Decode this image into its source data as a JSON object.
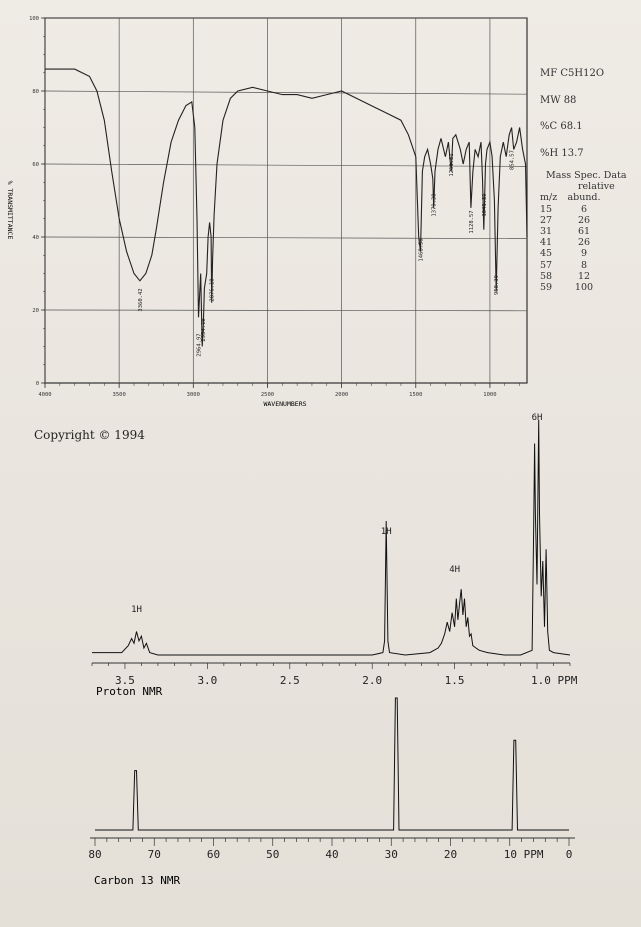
{
  "ir": {
    "ylabel": "% TRANSMITTANCE",
    "xlabel": "WAVENUMBERS",
    "y_ticks": [
      "100",
      "80",
      "60",
      "40",
      "20",
      "0"
    ],
    "x_ticks": [
      "4000",
      "3500",
      "3000",
      "2500",
      "2000",
      "1500",
      "1000"
    ],
    "peak_labels": [
      "3360.42",
      "2964.97",
      "2934.10",
      "2876.18",
      "1468.58",
      "1379.38",
      "1261.61",
      "1128.57",
      "1041.89",
      "958.39",
      "854.57"
    ]
  },
  "compound": {
    "mf": "MF C5H12O",
    "mw": "MW 88",
    "pct_c": "%C 68.1",
    "pct_h": "%H 13.7"
  },
  "mass_spec": {
    "title": "Mass Spec. Data",
    "header_rel": "relative",
    "header_mz": "m/z",
    "header_ab": "abund.",
    "rows": [
      {
        "mz": "15",
        "ab": "6"
      },
      {
        "mz": "27",
        "ab": "26"
      },
      {
        "mz": "31",
        "ab": "61"
      },
      {
        "mz": "41",
        "ab": "26"
      },
      {
        "mz": "45",
        "ab": "9"
      },
      {
        "mz": "57",
        "ab": "8"
      },
      {
        "mz": "58",
        "ab": "12"
      },
      {
        "mz": "59",
        "ab": "100"
      }
    ]
  },
  "copyright": "Copyright © 1994",
  "hnmr": {
    "caption": "Proton NMR",
    "x_ticks": [
      "3.5",
      "3.0",
      "2.5",
      "2.0",
      "1.5",
      "1.0 PPM"
    ],
    "integrations": [
      "1H",
      "1H",
      "4H",
      "6H"
    ]
  },
  "cnmr": {
    "caption": "Carbon 13 NMR",
    "x_ticks": [
      "80",
      "70",
      "60",
      "50",
      "40",
      "30",
      "20",
      "10 PPM",
      "0"
    ]
  },
  "chart_data": [
    {
      "type": "line",
      "title": "",
      "xlabel": "WAVENUMBERS",
      "ylabel": "% TRANSMITTANCE",
      "xlim": [
        4000,
        750
      ],
      "ylim": [
        0,
        100
      ],
      "series": [
        {
          "x": [
            4000,
            3800,
            3700,
            3650,
            3600,
            3550,
            3500,
            3450,
            3400,
            3360,
            3320,
            3280,
            3250,
            3200,
            3150,
            3100,
            3050,
            3010,
            2990,
            2975,
            2965,
            2950,
            2940,
            2934,
            2925,
            2910,
            2900,
            2890,
            2880,
            2876,
            2870,
            2860,
            2840,
            2800,
            2750,
            2700,
            2600,
            2500,
            2400,
            2300,
            2200,
            2100,
            2000,
            1900,
            1800,
            1700,
            1600,
            1550,
            1500,
            1480,
            1468,
            1455,
            1440,
            1420,
            1400,
            1385,
            1379,
            1370,
            1350,
            1330,
            1300,
            1280,
            1261,
            1250,
            1230,
            1200,
            1180,
            1160,
            1140,
            1128,
            1115,
            1100,
            1080,
            1060,
            1050,
            1041,
            1030,
            1020,
            1000,
            985,
            970,
            958,
            945,
            930,
            910,
            890,
            870,
            854,
            840,
            820,
            800,
            780,
            760,
            750
          ],
          "y": [
            86,
            86,
            84,
            80,
            72,
            58,
            45,
            36,
            30,
            28,
            30,
            35,
            42,
            55,
            66,
            72,
            76,
            77,
            70,
            45,
            18,
            30,
            10,
            14,
            26,
            30,
            40,
            44,
            40,
            22,
            34,
            46,
            60,
            72,
            78,
            80,
            81,
            80,
            79,
            79,
            78,
            79,
            80,
            78,
            76,
            74,
            72,
            68,
            62,
            40,
            36,
            58,
            62,
            64,
            60,
            56,
            48,
            58,
            64,
            67,
            62,
            66,
            58,
            67,
            68,
            64,
            60,
            64,
            66,
            48,
            58,
            64,
            62,
            66,
            56,
            42,
            60,
            64,
            66,
            62,
            50,
            25,
            48,
            62,
            66,
            62,
            68,
            70,
            64,
            66,
            70,
            64,
            60,
            40
          ]
        }
      ]
    },
    {
      "type": "line",
      "title": "",
      "xlabel": "Proton NMR",
      "ylabel": "",
      "xlim": [
        3.7,
        0.8
      ],
      "ylim": [
        0,
        100
      ],
      "series": [
        {
          "x": [
            3.7,
            3.52,
            3.48,
            3.46,
            3.445,
            3.43,
            3.415,
            3.4,
            3.385,
            3.37,
            3.35,
            3.3,
            3.0,
            2.5,
            2.0,
            1.935,
            1.925,
            1.915,
            1.905,
            1.895,
            1.8,
            1.65,
            1.6,
            1.58,
            1.56,
            1.545,
            1.53,
            1.515,
            1.5,
            1.49,
            1.48,
            1.47,
            1.46,
            1.45,
            1.44,
            1.43,
            1.42,
            1.41,
            1.4,
            1.39,
            1.37,
            1.35,
            1.3,
            1.2,
            1.1,
            1.03,
            1.02,
            1.015,
            1.01,
            1.0,
            0.99,
            0.985,
            0.975,
            0.965,
            0.955,
            0.945,
            0.935,
            0.925,
            0.9,
            0.8
          ],
          "y": [
            1,
            1,
            4,
            7,
            5,
            10,
            6,
            8,
            3,
            5,
            1,
            0,
            0,
            0,
            0,
            1,
            6,
            57,
            6,
            1,
            0,
            1,
            3,
            5,
            9,
            14,
            10,
            18,
            12,
            24,
            15,
            22,
            28,
            17,
            24,
            12,
            16,
            8,
            9,
            4,
            3,
            2,
            1,
            0,
            0,
            2,
            55,
            90,
            60,
            30,
            100,
            60,
            25,
            40,
            12,
            45,
            10,
            2,
            1,
            0
          ]
        }
      ]
    },
    {
      "type": "line",
      "title": "",
      "xlabel": "Carbon 13 NMR",
      "ylabel": "",
      "xlim": [
        80,
        0
      ],
      "ylim": [
        0,
        100
      ],
      "series": [
        {
          "x": [
            80,
            73.6,
            73.3,
            73.0,
            72.7,
            60,
            50,
            40,
            29.6,
            29.3,
            29.0,
            28.7,
            20,
            9.6,
            9.3,
            9.0,
            8.7,
            0
          ],
          "y": [
            0,
            0,
            45,
            45,
            0,
            0,
            0,
            0,
            0,
            100,
            100,
            0,
            0,
            0,
            68,
            68,
            0,
            0
          ]
        }
      ]
    }
  ]
}
